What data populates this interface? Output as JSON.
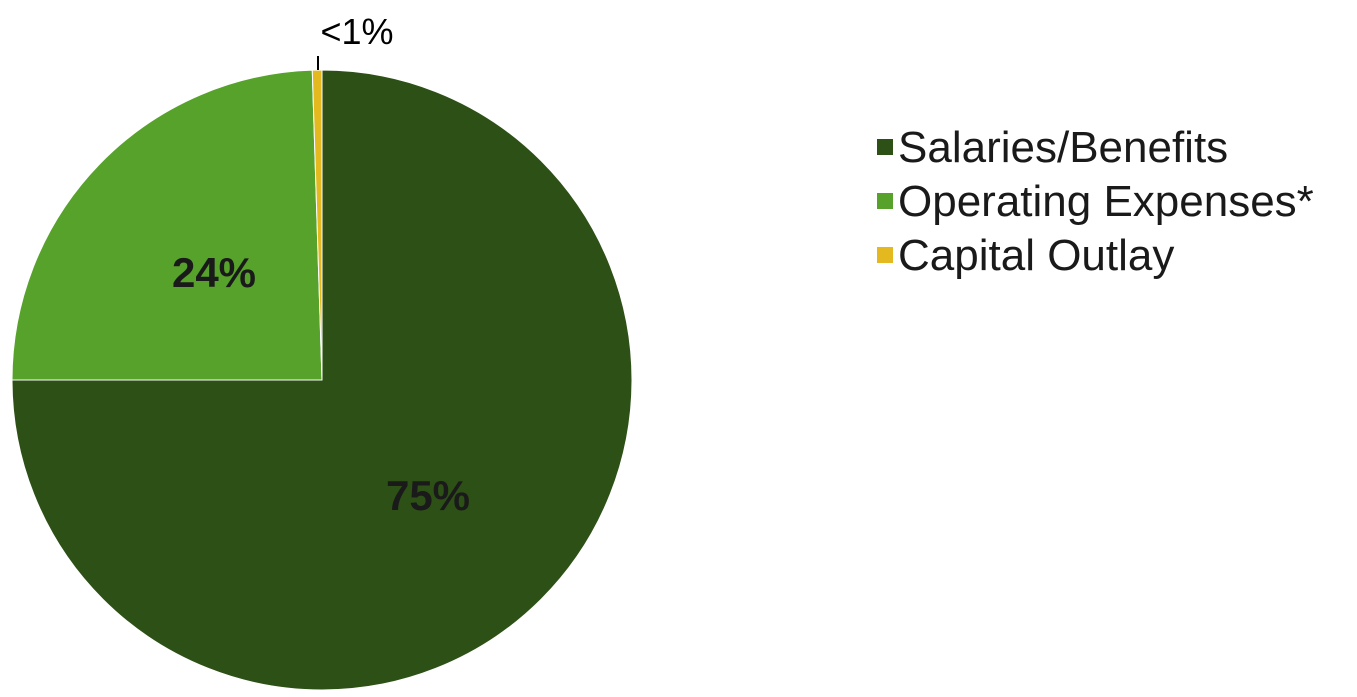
{
  "chart_data": {
    "type": "pie",
    "slices": [
      {
        "name": "Salaries/Benefits",
        "value": 75,
        "label": "75%",
        "color": "#2d5016"
      },
      {
        "name": "Operating Expenses*",
        "value": 24.5,
        "label": "24%",
        "color": "#56a22a"
      },
      {
        "name": "Capital Outlay",
        "value": 0.5,
        "label": "<1%",
        "color": "#e4b920"
      }
    ],
    "start_angle": "12 o'clock",
    "direction": "clockwise",
    "legend": {
      "placement": "right",
      "entries": [
        "Salaries/Benefits",
        "Operating Expenses*",
        "Capital Outlay"
      ]
    }
  }
}
